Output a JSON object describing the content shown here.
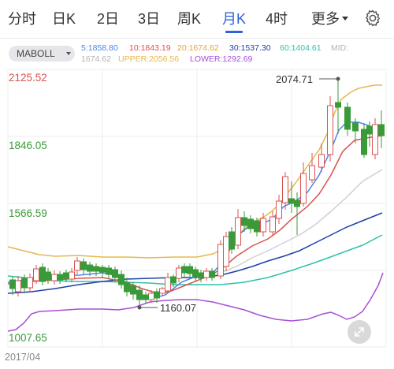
{
  "tabs": [
    {
      "label": "分时",
      "active": false
    },
    {
      "label": "日K",
      "active": false
    },
    {
      "label": "2日",
      "active": false
    },
    {
      "label": "3日",
      "active": false
    },
    {
      "label": "周K",
      "active": false
    },
    {
      "label": "月K",
      "active": true
    },
    {
      "label": "4时",
      "active": false
    },
    {
      "label": "更多",
      "active": false,
      "dropdown": true
    }
  ],
  "settings_icon": "gear-icon",
  "indicator": {
    "label": "MABOLL"
  },
  "ma_legend": [
    {
      "text": "5:1858.80",
      "color": "#4a86e8"
    },
    {
      "text": "10:1843.19",
      "color": "#d9534f"
    },
    {
      "text": "20:1674.62",
      "color": "#e6a23c"
    },
    {
      "text": "30:1537.30",
      "color": "#1f3fa8"
    },
    {
      "text": "60:1404.61",
      "color": "#2fc1a9"
    },
    {
      "text": "MID:",
      "color": "#b3b3b3"
    },
    {
      "text": "1674.62",
      "color": "#b3b3b3"
    },
    {
      "text": "UPPER:2056.56",
      "color": "#e6b84d"
    },
    {
      "text": "LOWER:1292.69",
      "color": "#a74fd6"
    }
  ],
  "y_axis": [
    {
      "text": "2125.52",
      "color": "#d9534f"
    },
    {
      "text": "1846.05",
      "color": "#3a9a3a"
    },
    {
      "text": "1566.59",
      "color": "#3a9a3a"
    },
    {
      "text": "1007.65",
      "color": "#3a9a3a"
    }
  ],
  "annotations": {
    "high": "2074.71",
    "low": "1160.07"
  },
  "x_axis": {
    "start": "2017/04"
  },
  "expand_icon": "expand-icon"
}
